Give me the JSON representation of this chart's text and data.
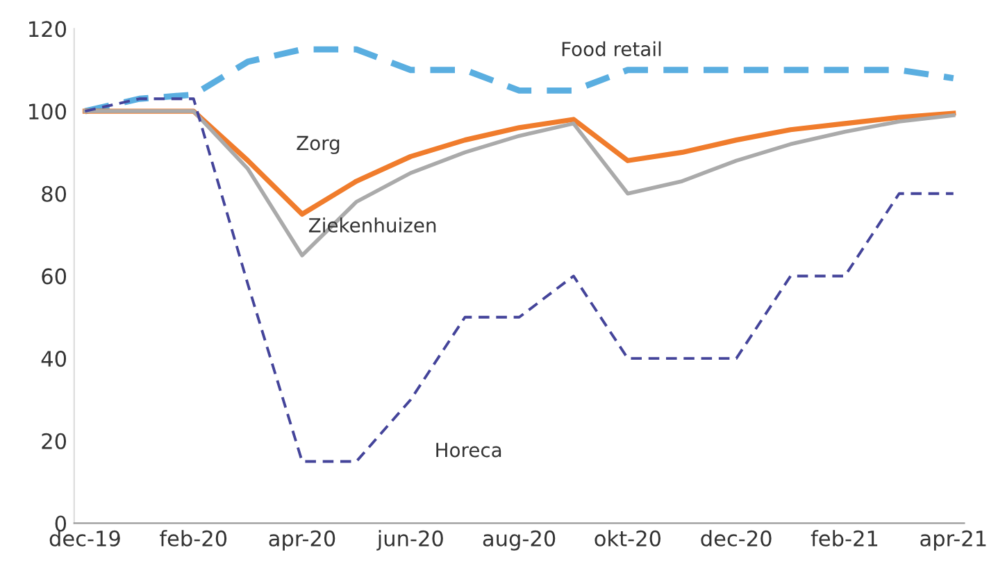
{
  "chart_data": {
    "type": "line",
    "categories": [
      "dec-19",
      null,
      "feb-20",
      null,
      "apr-20",
      null,
      "jun-20",
      null,
      "aug-20",
      null,
      "okt-20",
      null,
      "dec-20",
      null,
      "feb-21",
      null,
      "apr-21"
    ],
    "series": [
      {
        "name": "Food retail",
        "color": "#5aaee0",
        "line_style": "dashed",
        "values": [
          100,
          103,
          104,
          112,
          115,
          115,
          110,
          110,
          105,
          105,
          110,
          110,
          110,
          110,
          110,
          110,
          108
        ]
      },
      {
        "name": "Zorg",
        "color": "#f07c2c",
        "line_style": "solid",
        "values": [
          100,
          100,
          100,
          88,
          75,
          83,
          89,
          93,
          96,
          98,
          88,
          90,
          93,
          95.5,
          97,
          98.5,
          99.5
        ]
      },
      {
        "name": "Ziekenhuizen",
        "color": "#aaaaaa",
        "line_style": "solid",
        "values": [
          100,
          100,
          100,
          86,
          65,
          78,
          85,
          90,
          94,
          97,
          80,
          83,
          88,
          92,
          95,
          97.5,
          99
        ]
      },
      {
        "name": "Horeca",
        "color": "#44449a",
        "line_style": "dashed",
        "values": [
          100,
          103,
          103,
          58,
          15,
          15,
          30,
          50,
          50,
          60,
          40,
          40,
          40,
          60,
          60,
          80,
          80
        ]
      }
    ],
    "ylim": [
      0,
      120
    ],
    "yticks": [
      0,
      20,
      40,
      60,
      80,
      100,
      120
    ],
    "grid": false,
    "legend": false,
    "marker": "none"
  }
}
